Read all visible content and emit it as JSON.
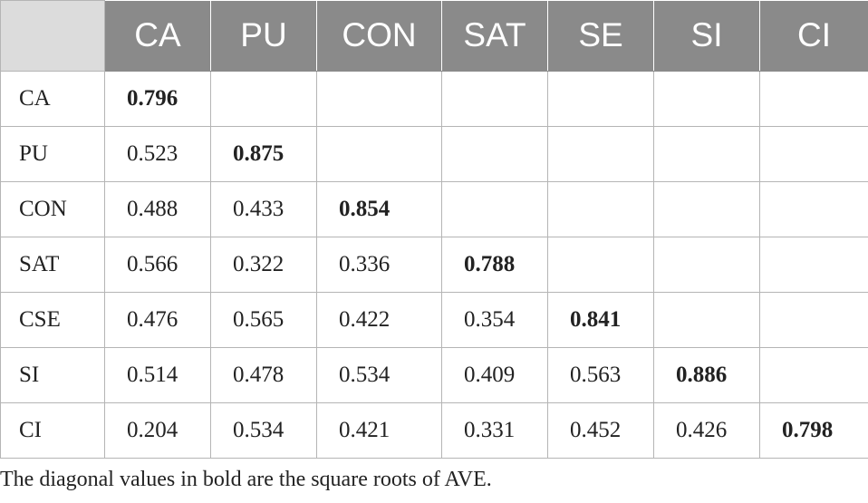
{
  "table": {
    "corner": "",
    "columns": [
      "CA",
      "PU",
      "CON",
      "SAT",
      "SE",
      "SI",
      "CI"
    ],
    "rows": [
      {
        "label": "CA",
        "cells": [
          "0.796",
          "",
          "",
          "",
          "",
          "",
          ""
        ]
      },
      {
        "label": "PU",
        "cells": [
          "0.523",
          "0.875",
          "",
          "",
          "",
          "",
          ""
        ]
      },
      {
        "label": "CON",
        "cells": [
          "0.488",
          "0.433",
          "0.854",
          "",
          "",
          "",
          ""
        ]
      },
      {
        "label": "SAT",
        "cells": [
          "0.566",
          "0.322",
          "0.336",
          "0.788",
          "",
          "",
          ""
        ]
      },
      {
        "label": "CSE",
        "cells": [
          "0.476",
          "0.565",
          "0.422",
          "0.354",
          "0.841",
          "",
          ""
        ]
      },
      {
        "label": "SI",
        "cells": [
          "0.514",
          "0.478",
          "0.534",
          "0.409",
          "0.563",
          "0.886",
          ""
        ]
      },
      {
        "label": "CI",
        "cells": [
          "0.204",
          "0.534",
          "0.421",
          "0.331",
          "0.452",
          "0.426",
          "0.798"
        ]
      }
    ]
  },
  "footnote": "The diagonal values in bold are the square roots of AVE.",
  "colors": {
    "header_bg": "#8a8a8a",
    "header_text": "#ffffff",
    "corner_bg": "#dcdcdc",
    "grid_line": "#b5b5b5"
  }
}
